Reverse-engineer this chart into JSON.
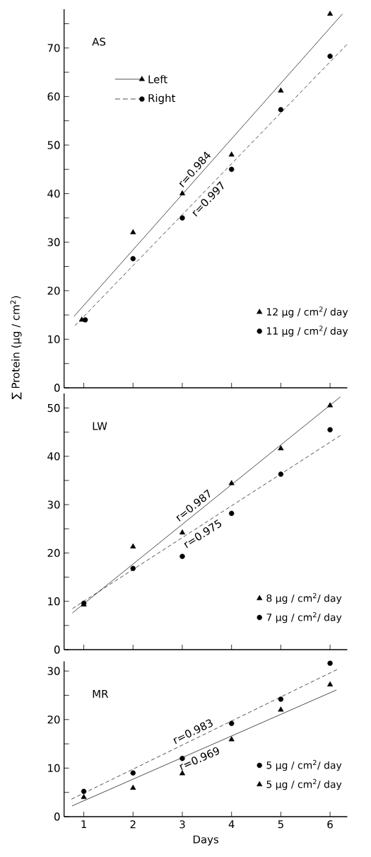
{
  "chart_data": [
    {
      "type": "scatter",
      "title": "AS",
      "xlim": [
        0.6,
        6.35
      ],
      "xticks": [
        1,
        2,
        3,
        4,
        5,
        6
      ],
      "ylim": [
        0,
        78
      ],
      "yticks": [
        0,
        {
          "value": 5,
          "label": null
        },
        10,
        {
          "value": 15,
          "label": null
        },
        20,
        {
          "value": 25,
          "label": null
        },
        30,
        {
          "value": 35,
          "label": null
        },
        40,
        {
          "value": 45,
          "label": null
        },
        50,
        {
          "value": 55,
          "label": null
        },
        60,
        {
          "value": 65,
          "label": null
        },
        70,
        {
          "value": 75,
          "label": null
        }
      ],
      "tick_labels": "y",
      "legend": "bottom right",
      "annotations": [
        "r=0.984",
        "r=0.997"
      ],
      "series": [
        {
          "name": "12 µg / cm$^{2}$/ day",
          "marker": "triangle",
          "color": "#000000",
          "x": [
            0.96,
            2,
            3,
            4,
            5,
            6
          ],
          "values": [
            14,
            32,
            40,
            48,
            61.2,
            77
          ]
        },
        {
          "name": "11 µg / cm$^{2}$/ day",
          "marker": "circle",
          "color": "#000000",
          "x": [
            1.03,
            2,
            3,
            4,
            5,
            6
          ],
          "values": [
            14,
            26.6,
            35,
            45,
            57.3,
            68.3
          ]
        },
        {
          "name": "Left",
          "type": "line",
          "line_style": "solid",
          "color": "#000000",
          "x": [
            0.8,
            6.25
          ],
          "values": [
            14.7,
            77
          ]
        },
        {
          "name": "Right",
          "type": "line",
          "line_style": "dashed",
          "color": "#000000",
          "x": [
            0.82,
            6.34
          ],
          "values": [
            12.8,
            70.7
          ]
        }
      ]
    },
    {
      "type": "scatter",
      "title": "LW",
      "ylabel": "∑ Protein (µg / cm$^{2}$)",
      "xlim": [
        0.6,
        6.35
      ],
      "xticks": [
        1,
        2,
        3,
        4,
        5,
        6
      ],
      "ylim": [
        0,
        53
      ],
      "yticks": [
        0,
        {
          "value": 5,
          "label": null
        },
        10,
        {
          "value": 15,
          "label": null
        },
        20,
        {
          "value": 25,
          "label": null
        },
        30,
        {
          "value": 35,
          "label": null
        },
        40,
        {
          "value": 45,
          "label": null
        },
        50
      ],
      "tick_labels": "y",
      "legend": "bottom right",
      "annotations": [
        "r=0.987",
        "r=0.975"
      ],
      "series": [
        {
          "name": "8 µg / cm$^{2}$/ day",
          "marker": "triangle",
          "color": "#000000",
          "x": [
            1,
            2,
            3,
            4,
            5,
            6
          ],
          "values": [
            9.3,
            21.3,
            24.2,
            34.4,
            41.6,
            50.5
          ]
        },
        {
          "name": "7 µg / cm$^{2}$/ day",
          "marker": "circle",
          "color": "#000000",
          "x": [
            1,
            2,
            3,
            4,
            5,
            6
          ],
          "values": [
            9.6,
            16.8,
            19.3,
            28.2,
            36.3,
            45.5
          ]
        },
        {
          "type": "line",
          "line_style": "solid",
          "color": "#000000",
          "x": [
            0.77,
            6.21
          ],
          "values": [
            7.6,
            52.3
          ]
        },
        {
          "type": "line",
          "line_style": "dashed",
          "color": "#000000",
          "x": [
            0.77,
            6.21
          ],
          "values": [
            8.5,
            44.3
          ]
        }
      ]
    },
    {
      "type": "scatter",
      "title": "MR",
      "xlabel": "Days",
      "xlim": [
        0.6,
        6.35
      ],
      "xticks": [
        1,
        2,
        3,
        4,
        5,
        6
      ],
      "ylim": [
        0,
        32
      ],
      "yticks": [
        0,
        {
          "value": 5,
          "label": null
        },
        10,
        {
          "value": 15,
          "label": null
        },
        20,
        {
          "value": 25,
          "label": null
        },
        30
      ],
      "legend": "right",
      "annotations": [
        "r=0.983",
        "r=0.969"
      ],
      "series": [
        {
          "name": "5 µg / cm$^{2}$/ day",
          "marker": "circle",
          "color": "#000000",
          "x": [
            1,
            2,
            3,
            4,
            5,
            6
          ],
          "values": [
            5.2,
            9.0,
            12.0,
            19.2,
            24.2,
            31.6
          ]
        },
        {
          "name": "5 µg / cm$^{2}$/ day",
          "marker": "triangle",
          "color": "#000000",
          "x": [
            1,
            2,
            3,
            4,
            5,
            6
          ],
          "values": [
            4.0,
            5.9,
            8.9,
            15.9,
            22.0,
            27.2
          ]
        },
        {
          "type": "line",
          "line_style": "dashed",
          "color": "#000000",
          "x": [
            0.75,
            6.14
          ],
          "values": [
            3.6,
            30.3
          ]
        },
        {
          "type": "line",
          "line_style": "solid",
          "color": "#000000",
          "x": [
            0.76,
            6.13
          ],
          "values": [
            2.2,
            26.1
          ]
        }
      ]
    }
  ]
}
